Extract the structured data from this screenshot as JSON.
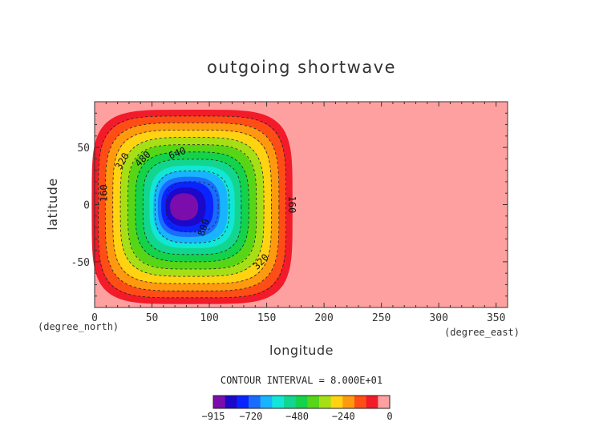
{
  "chart_data": {
    "type": "heatmap",
    "title": "outgoing shortwave",
    "xlabel": "longitude",
    "ylabel": "latitude",
    "x_unit": "(degree_east)",
    "y_unit": "(degree_north)",
    "xlim": [
      0,
      360
    ],
    "ylim": [
      -90,
      90
    ],
    "x_ticks": [
      0,
      50,
      100,
      150,
      200,
      250,
      300,
      350
    ],
    "y_ticks": [
      -50,
      0,
      50
    ],
    "contour_interval_text": "CONTOUR INTERVAL = 8.000E+01",
    "field": {
      "center_lon": 85,
      "center_lat": -2,
      "extent_lon": [
        0,
        175
      ],
      "extent_lat": [
        -85,
        85
      ],
      "min_value": -915,
      "max_value": 0,
      "levels": [
        0,
        -80,
        -160,
        -240,
        -320,
        -400,
        -480,
        -560,
        -640,
        -720,
        -800,
        -880
      ]
    },
    "contour_labels": [
      {
        "text": "160",
        "lon": 8,
        "lat": 10,
        "angle": -90
      },
      {
        "text": "320",
        "lon": 24,
        "lat": 38,
        "angle": -60
      },
      {
        "text": "480",
        "lon": 42,
        "lat": 40,
        "angle": -45
      },
      {
        "text": "640",
        "lon": 72,
        "lat": 45,
        "angle": -20
      },
      {
        "text": "800",
        "lon": 95,
        "lat": -20,
        "angle": -70
      },
      {
        "text": "160",
        "lon": 172,
        "lat": 0,
        "angle": 90
      },
      {
        "text": "320",
        "lon": 145,
        "lat": -50,
        "angle": -45
      }
    ],
    "colorbar": {
      "colors": [
        "#7a0dab",
        "#1b08c9",
        "#0a24ff",
        "#1a6cff",
        "#19b4ff",
        "#12e6d6",
        "#12d690",
        "#14d24a",
        "#56d616",
        "#a7df16",
        "#ffd312",
        "#ff9a10",
        "#ff4d16",
        "#f21b2a",
        "#ffa0a0"
      ],
      "tick_labels": [
        "-915",
        "-720",
        "-480",
        "-240",
        "0"
      ],
      "tick_values": [
        -915,
        -720,
        -480,
        -240,
        0
      ]
    },
    "legend": "bottom colorbar",
    "grid": false
  }
}
